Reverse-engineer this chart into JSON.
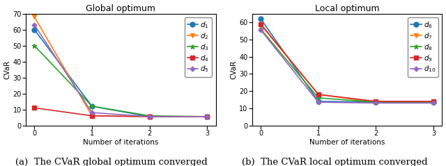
{
  "left": {
    "title": "Global optimum",
    "xlabel": "Number of iterations",
    "ylabel": "CVaR",
    "caption": "(a)  The CVaR global optimum converged",
    "series": [
      {
        "label": "$d_1$",
        "x": [
          0,
          1,
          2,
          3
        ],
        "y": [
          60,
          12,
          5.5,
          5.5
        ],
        "color": "#1f77b4",
        "marker": "o",
        "linestyle": "-"
      },
      {
        "label": "$d_2$",
        "x": [
          0,
          1,
          2,
          3
        ],
        "y": [
          68,
          6,
          5.5,
          5.5
        ],
        "color": "#ff7f0e",
        "marker": "v",
        "linestyle": "-"
      },
      {
        "label": "$d_3$",
        "x": [
          0,
          1,
          2,
          3
        ],
        "y": [
          50,
          12,
          6,
          5.5
        ],
        "color": "#2ca02c",
        "marker": "*",
        "linestyle": "-"
      },
      {
        "label": "$d_4$",
        "x": [
          0,
          1,
          2,
          3
        ],
        "y": [
          11,
          6,
          5.5,
          5.5
        ],
        "color": "#d62728",
        "marker": "s",
        "linestyle": "-"
      },
      {
        "label": "$d_5$",
        "x": [
          0,
          1,
          2,
          3
        ],
        "y": [
          63,
          8,
          5.5,
          5.5
        ],
        "color": "#9467bd",
        "marker": "P",
        "linestyle": "-"
      }
    ],
    "ylim": [
      0,
      70
    ],
    "yticks": [
      0,
      10,
      20,
      30,
      40,
      50,
      60,
      70
    ],
    "xticks": [
      0,
      1,
      2,
      3
    ]
  },
  "right": {
    "title": "Local optimum",
    "xlabel": "Number of iterations",
    "ylabel": "CVaR",
    "caption": "(b)  The CVaR local optimum converged",
    "series": [
      {
        "label": "$d_6$",
        "x": [
          0,
          1,
          2,
          3
        ],
        "y": [
          62,
          14,
          13.5,
          13.5
        ],
        "color": "#1f77b4",
        "marker": "o",
        "linestyle": "-"
      },
      {
        "label": "$d_7$",
        "x": [
          0,
          1,
          2,
          3
        ],
        "y": [
          58.5,
          18,
          13.5,
          13.5
        ],
        "color": "#ff7f0e",
        "marker": "v",
        "linestyle": "-"
      },
      {
        "label": "$d_8$",
        "x": [
          0,
          1,
          2,
          3
        ],
        "y": [
          56,
          16,
          13.5,
          13.5
        ],
        "color": "#2ca02c",
        "marker": "*",
        "linestyle": "-"
      },
      {
        "label": "$d_9$",
        "x": [
          0,
          1,
          2,
          3
        ],
        "y": [
          59,
          18,
          14,
          14
        ],
        "color": "#d62728",
        "marker": "s",
        "linestyle": "-"
      },
      {
        "label": "$d_{10}$",
        "x": [
          0,
          1,
          2,
          3
        ],
        "y": [
          55.5,
          13.5,
          13,
          13
        ],
        "color": "#9467bd",
        "marker": "P",
        "linestyle": "-"
      }
    ],
    "ylim": [
      0,
      65
    ],
    "yticks": [
      0,
      10,
      20,
      30,
      40,
      50,
      60
    ],
    "xticks": [
      0,
      1,
      2,
      3
    ]
  },
  "figsize": [
    6.4,
    2.39
  ],
  "dpi": 100,
  "caption_fontsize": 9.5,
  "title_fontsize": 9,
  "label_fontsize": 7.5,
  "tick_fontsize": 7,
  "legend_fontsize": 7.5,
  "linewidth": 1.2,
  "markersize": 5
}
